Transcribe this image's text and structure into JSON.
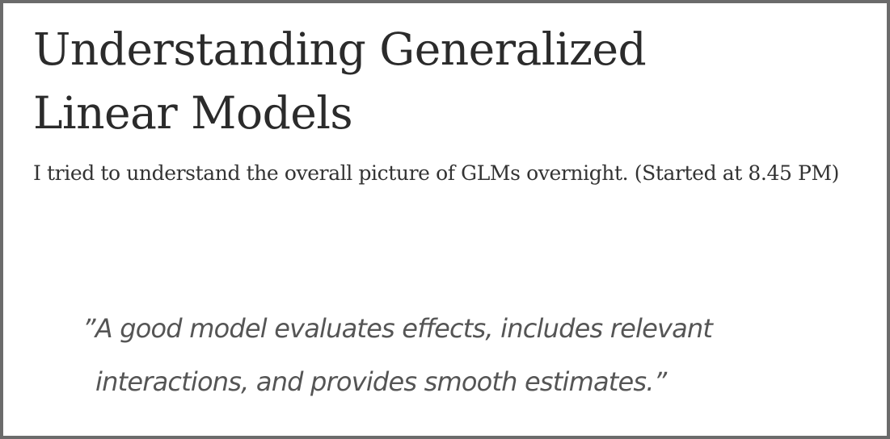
{
  "article": {
    "title_line1": "Understanding Generalized",
    "title_line2": "Linear Models",
    "subtitle": "I tried to understand the overall picture of GLMs overnight. (Started at 8.45 PM)",
    "quote_line1": "”A good model evaluates effects, includes relevant",
    "quote_line2": "interactions, and provides smooth estimates.”"
  }
}
